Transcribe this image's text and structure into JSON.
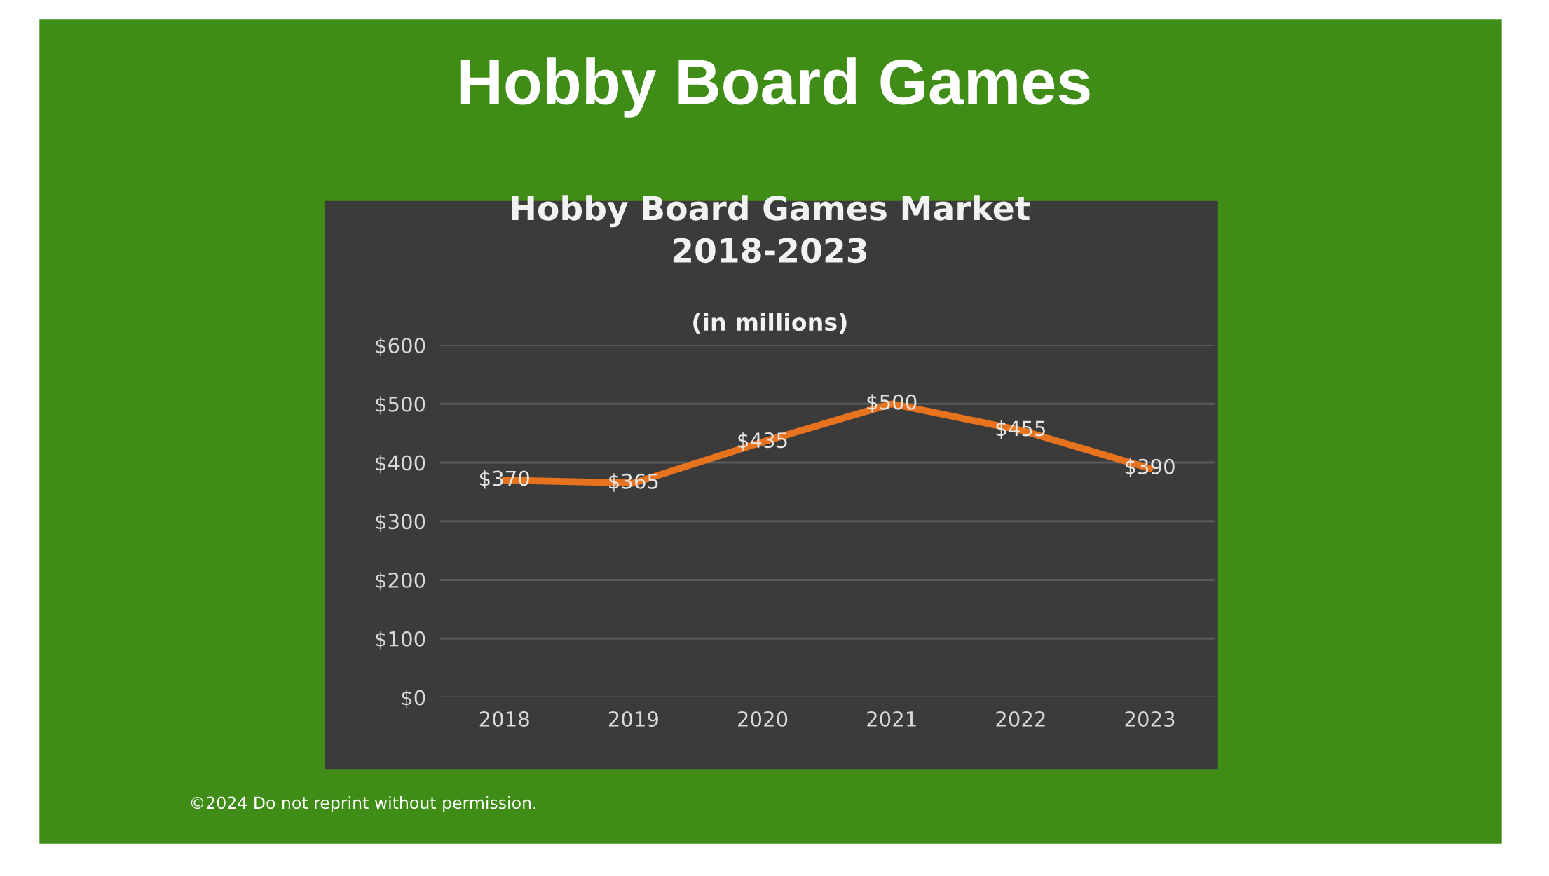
{
  "chart_data": {
    "type": "line",
    "title": "Hobby Board Games",
    "subtitle": "Hobby Board Games Market\n2018-2023",
    "annotations": [
      "(in millions)",
      "©2024 Do not reprint without permission."
    ],
    "categories": [
      "2018",
      "2019",
      "2020",
      "2021",
      "2022",
      "2023"
    ],
    "series": [
      {
        "color": "#e8731e",
        "values": [
          370,
          365,
          435,
          500,
          455,
          390
        ],
        "value_labels": [
          "$370",
          "$365",
          "$435",
          "$500",
          "$455",
          "$390"
        ]
      }
    ],
    "ylim": [
      0,
      600
    ],
    "yticks": [
      {
        "value": 0,
        "label": "$0"
      },
      {
        "value": 100,
        "label": "$100"
      },
      {
        "value": 200,
        "label": "$200"
      },
      {
        "value": 300,
        "label": "$300"
      },
      {
        "value": 400,
        "label": "$400"
      },
      {
        "value": 500,
        "label": "$500"
      },
      {
        "value": 600,
        "label": "$600"
      }
    ],
    "grid": "y",
    "marker": "none",
    "line_style": "solid"
  }
}
